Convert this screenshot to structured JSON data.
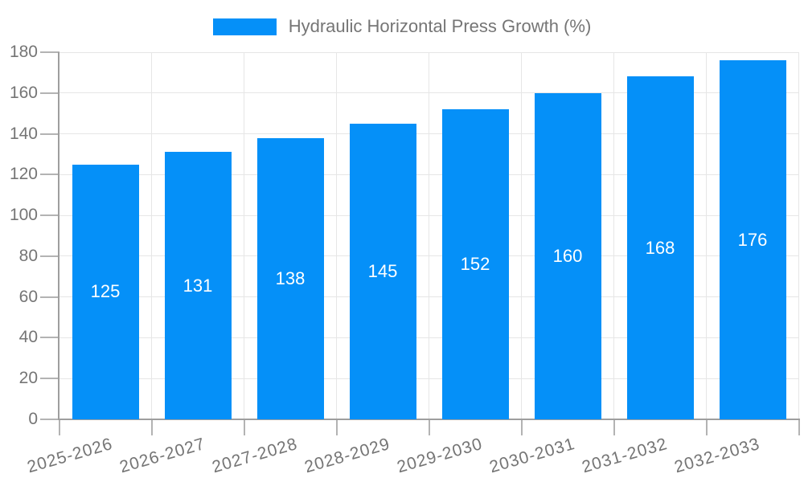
{
  "chart_data": {
    "type": "bar",
    "title": "Hydraulic Horizontal Press Growth (%)",
    "legend_position": "top-center",
    "categories": [
      "2025-2026",
      "2026-2027",
      "2027-2028",
      "2028-2029",
      "2029-2030",
      "2030-2031",
      "2031-2032",
      "2032-2033"
    ],
    "values": [
      125,
      131,
      138,
      145,
      152,
      160,
      168,
      176
    ],
    "bar_value_labels": [
      "125",
      "131",
      "138",
      "145",
      "152",
      "160",
      "168",
      "176"
    ],
    "xlabel": "",
    "ylabel": "",
    "ylim": [
      0,
      180
    ],
    "yticks": [
      0,
      20,
      40,
      60,
      80,
      100,
      120,
      140,
      160,
      180
    ],
    "grid": "horizontal and category-boundary vertical gridlines",
    "x_label_rotation_deg": -16,
    "colors": {
      "bar": "#0590f8",
      "bar_label": "#ffffff",
      "axis_text": "#757575",
      "grid": "#e6e6e6",
      "tick": "#b3b3b3",
      "axis_line": "#9e9e9e",
      "background": "#ffffff"
    }
  }
}
